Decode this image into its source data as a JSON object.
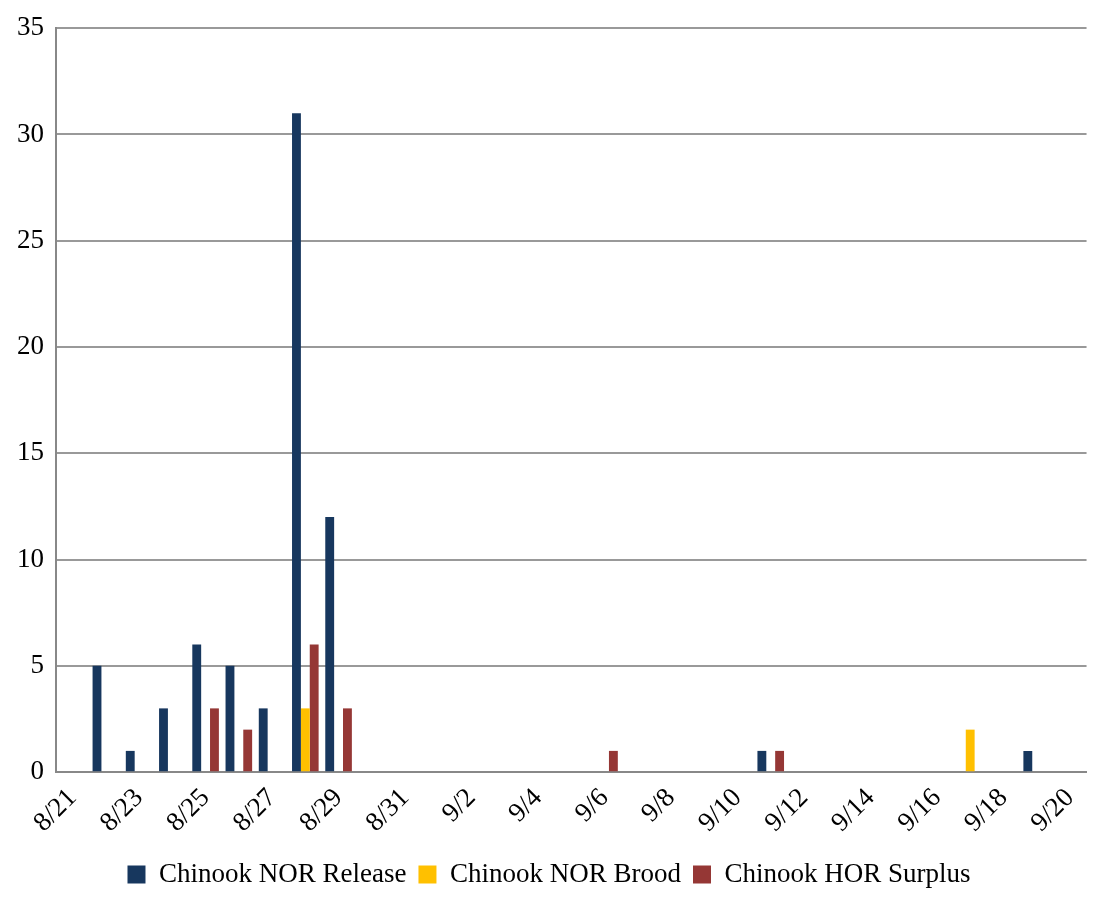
{
  "chart_data": {
    "type": "bar",
    "categories": [
      "8/21",
      null,
      "8/23",
      null,
      "8/25",
      null,
      "8/27",
      null,
      "8/29",
      null,
      "8/31",
      null,
      "9/2",
      null,
      "9/4",
      null,
      "9/6",
      null,
      "9/8",
      null,
      "9/10",
      null,
      "9/12",
      null,
      "9/14",
      null,
      "9/16",
      null,
      "9/18",
      null,
      "9/20"
    ],
    "series": [
      {
        "name": "Chinook NOR Release",
        "color": "#17375e",
        "values": [
          null,
          5,
          1,
          3,
          6,
          5,
          3,
          31,
          12,
          null,
          null,
          null,
          null,
          null,
          null,
          null,
          null,
          null,
          null,
          null,
          null,
          1,
          null,
          null,
          null,
          null,
          null,
          null,
          null,
          1,
          null
        ]
      },
      {
        "name": "Chinook NOR Brood",
        "color": "#ffc000",
        "values": [
          null,
          null,
          null,
          null,
          null,
          null,
          null,
          3,
          null,
          null,
          null,
          null,
          null,
          null,
          null,
          null,
          null,
          null,
          null,
          null,
          null,
          null,
          null,
          null,
          null,
          null,
          null,
          2,
          null,
          null,
          null
        ]
      },
      {
        "name": "Chinook HOR Surplus",
        "color": "#953735",
        "values": [
          null,
          null,
          null,
          null,
          3,
          2,
          null,
          6,
          3,
          null,
          null,
          null,
          null,
          null,
          null,
          null,
          1,
          null,
          null,
          null,
          null,
          1,
          null,
          null,
          null,
          null,
          null,
          null,
          null,
          null,
          null
        ]
      }
    ],
    "ylim": [
      0,
      35
    ],
    "yticks": [
      0,
      5,
      10,
      15,
      20,
      25,
      30,
      35
    ],
    "grid": "y",
    "legend": "bottom"
  }
}
